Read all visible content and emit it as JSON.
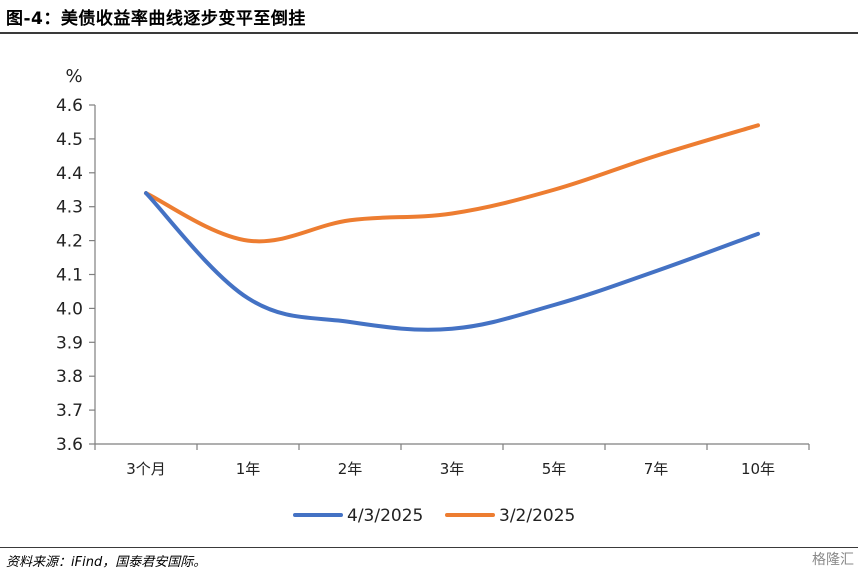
{
  "figure": {
    "title": "图-4：美债收益率曲线逐步变平至倒挂",
    "source": "资料来源：iFind，国泰君安国际。",
    "watermark": "格隆汇"
  },
  "chart_data": {
    "type": "line",
    "title": "美债收益率曲线逐步变平至倒挂",
    "ylabel": "%",
    "xlabel": "",
    "ylim": [
      3.6,
      4.6
    ],
    "yticks": [
      "4.6",
      "4.5",
      "4.4",
      "4.3",
      "4.2",
      "4.1",
      "4.0",
      "3.9",
      "3.8",
      "3.7",
      "3.6"
    ],
    "categories": [
      "3个月",
      "1年",
      "2年",
      "3年",
      "5年",
      "7年",
      "10年"
    ],
    "grid": false,
    "legend_position": "bottom",
    "series": [
      {
        "name": "4/3/2025",
        "color": "#4472C4",
        "values": [
          4.34,
          4.03,
          3.96,
          3.94,
          4.01,
          4.11,
          4.22
        ]
      },
      {
        "name": "3/2/2025",
        "color": "#ED7D31",
        "values": [
          4.34,
          4.2,
          4.26,
          4.28,
          4.35,
          4.45,
          4.54
        ]
      }
    ]
  }
}
